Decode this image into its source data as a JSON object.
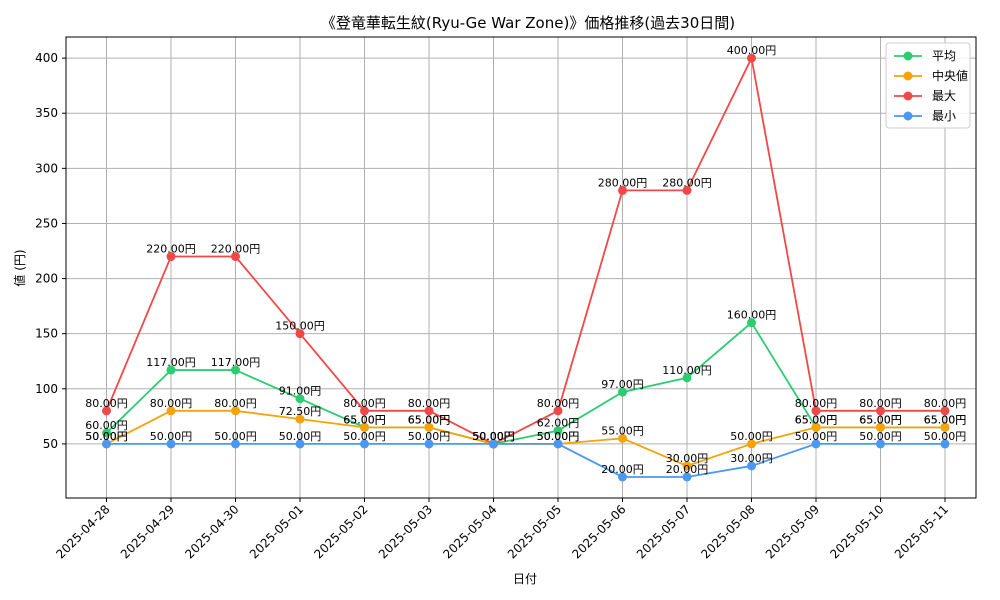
{
  "chart_data": {
    "type": "line",
    "title": "《登竜華転生紋(Ryu-Ge War Zone)》価格推移(過去30日間)",
    "xlabel": "日付",
    "ylabel": "値 (円)",
    "categories": [
      "2025-04-28",
      "2025-04-29",
      "2025-04-30",
      "2025-05-01",
      "2025-05-02",
      "2025-05-03",
      "2025-05-04",
      "2025-05-05",
      "2025-05-06",
      "2025-05-07",
      "2025-05-08",
      "2025-05-09",
      "2025-05-10",
      "2025-05-11"
    ],
    "ylim": [
      0,
      420
    ],
    "yticks": [
      50,
      100,
      150,
      200,
      250,
      300,
      350,
      400
    ],
    "grid": true,
    "legend_position": "top-right",
    "value_suffix": "円",
    "series": [
      {
        "name": "平均",
        "color": "#2ecc71",
        "values": [
          60,
          117,
          117,
          91,
          65,
          65,
          50,
          62,
          97,
          110,
          160,
          65,
          65,
          65
        ]
      },
      {
        "name": "中央値",
        "color": "#f5a30a",
        "values": [
          50,
          80,
          80,
          72.5,
          65,
          65,
          50,
          50,
          55,
          30,
          50,
          65,
          65,
          65
        ]
      },
      {
        "name": "最大",
        "color": "#f04848",
        "values": [
          80,
          220,
          220,
          150,
          80,
          80,
          50,
          80,
          280,
          280,
          400,
          80,
          80,
          80
        ]
      },
      {
        "name": "最小",
        "color": "#4a98f2",
        "values": [
          50,
          50,
          50,
          50,
          50,
          50,
          50,
          50,
          20,
          20,
          30,
          50,
          50,
          50
        ]
      }
    ]
  }
}
